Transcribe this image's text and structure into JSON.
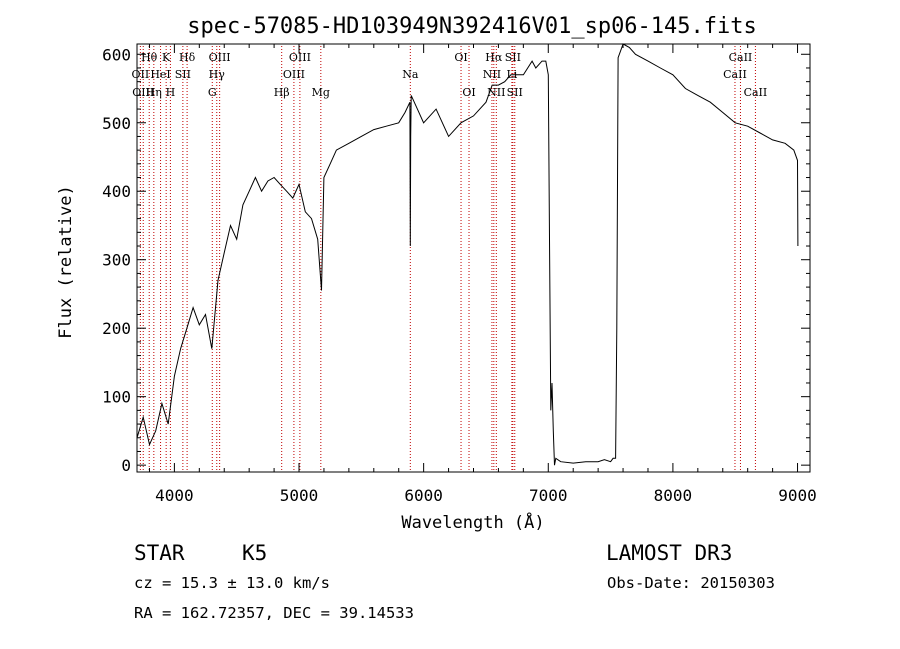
{
  "chart_data": {
    "type": "line",
    "title": "spec-57085-HD103949N392416V01_sp06-145.fits",
    "xlabel": "Wavelength (Å)",
    "ylabel": "Flux (relative)",
    "xlim": [
      3700,
      9100
    ],
    "ylim": [
      -10,
      615
    ],
    "xticks": [
      4000,
      5000,
      6000,
      7000,
      8000,
      9000
    ],
    "yticks": [
      0,
      100,
      200,
      300,
      400,
      500,
      600
    ],
    "grid": false,
    "series": [
      {
        "name": "flux",
        "x": [
          3700,
          3750,
          3800,
          3850,
          3900,
          3950,
          4000,
          4050,
          4100,
          4150,
          4200,
          4250,
          4300,
          4350,
          4400,
          4450,
          4500,
          4550,
          4600,
          4650,
          4700,
          4750,
          4800,
          4850,
          4900,
          4950,
          5000,
          5050,
          5100,
          5150,
          5180,
          5200,
          5250,
          5300,
          5400,
          5500,
          5600,
          5700,
          5800,
          5850,
          5890,
          5893,
          5896,
          5900,
          5950,
          6000,
          6100,
          6200,
          6300,
          6400,
          6500,
          6550,
          6600,
          6650,
          6700,
          6800,
          6870,
          6900,
          6950,
          6980,
          7000,
          7010,
          7020,
          7030,
          7040,
          7050,
          7060,
          7100,
          7200,
          7300,
          7400,
          7450,
          7500,
          7520,
          7540,
          7550,
          7560,
          7600,
          7650,
          7700,
          7800,
          7900,
          8000,
          8100,
          8200,
          8300,
          8400,
          8500,
          8600,
          8700,
          8800,
          8900,
          8970,
          9000,
          9003
        ],
        "y": [
          40,
          70,
          30,
          50,
          90,
          60,
          130,
          170,
          200,
          230,
          205,
          220,
          170,
          270,
          310,
          350,
          330,
          380,
          400,
          420,
          400,
          415,
          420,
          410,
          400,
          390,
          410,
          370,
          360,
          330,
          255,
          420,
          440,
          460,
          470,
          480,
          490,
          495,
          500,
          515,
          530,
          320,
          480,
          540,
          520,
          500,
          520,
          480,
          500,
          510,
          530,
          555,
          555,
          560,
          570,
          570,
          590,
          580,
          590,
          590,
          570,
          330,
          80,
          120,
          50,
          0,
          10,
          5,
          3,
          5,
          5,
          8,
          5,
          10,
          10,
          200,
          595,
          615,
          610,
          600,
          590,
          580,
          570,
          550,
          540,
          530,
          515,
          500,
          495,
          485,
          475,
          470,
          460,
          445,
          320
        ]
      }
    ],
    "lines": [
      {
        "label": "Hθ",
        "x": 3798,
        "row": 0
      },
      {
        "label": "OII",
        "x": 3727,
        "row": 1
      },
      {
        "label": "OIII",
        "x": 3750,
        "row": 2
      },
      {
        "label": "Hη",
        "x": 3835,
        "row": 2
      },
      {
        "label": "HeI",
        "x": 3889,
        "row": 1
      },
      {
        "label": "K",
        "x": 3934,
        "row": 0
      },
      {
        "label": "H",
        "x": 3968,
        "row": 2
      },
      {
        "label": "SII",
        "x": 4068,
        "row": 1
      },
      {
        "label": "Hδ",
        "x": 4102,
        "row": 0
      },
      {
        "label": "OIII",
        "x": 4363,
        "row": 0
      },
      {
        "label": "Hγ",
        "x": 4340,
        "row": 1
      },
      {
        "label": "G",
        "x": 4304,
        "row": 2
      },
      {
        "label": "Hβ",
        "x": 4861,
        "row": 2
      },
      {
        "label": "OIII",
        "x": 5007,
        "row": 0
      },
      {
        "label": "OIII",
        "x": 4959,
        "row": 1
      },
      {
        "label": "Mg",
        "x": 5175,
        "row": 2
      },
      {
        "label": "Na",
        "x": 5893,
        "row": 1
      },
      {
        "label": "OI",
        "x": 6300,
        "row": 0
      },
      {
        "label": "OI",
        "x": 6364,
        "row": 2
      },
      {
        "label": "Hα",
        "x": 6563,
        "row": 0
      },
      {
        "label": "NII",
        "x": 6548,
        "row": 1
      },
      {
        "label": "NII",
        "x": 6583,
        "row": 2
      },
      {
        "label": "SII",
        "x": 6716,
        "row": 0
      },
      {
        "label": "Li",
        "x": 6708,
        "row": 1
      },
      {
        "label": "SII",
        "x": 6731,
        "row": 2
      },
      {
        "label": "CaII",
        "x": 8542,
        "row": 0
      },
      {
        "label": "CaII",
        "x": 8498,
        "row": 1
      },
      {
        "label": "CaII",
        "x": 8662,
        "row": 2
      }
    ]
  },
  "info": {
    "class_label": "STAR",
    "subclass": "K5",
    "survey": "LAMOST DR3",
    "redshift": "cz =  15.3 ± 13.0 km/s",
    "obs_date": "Obs-Date: 20150303",
    "coords": "RA = 162.72357, DEC =  39.14533"
  }
}
